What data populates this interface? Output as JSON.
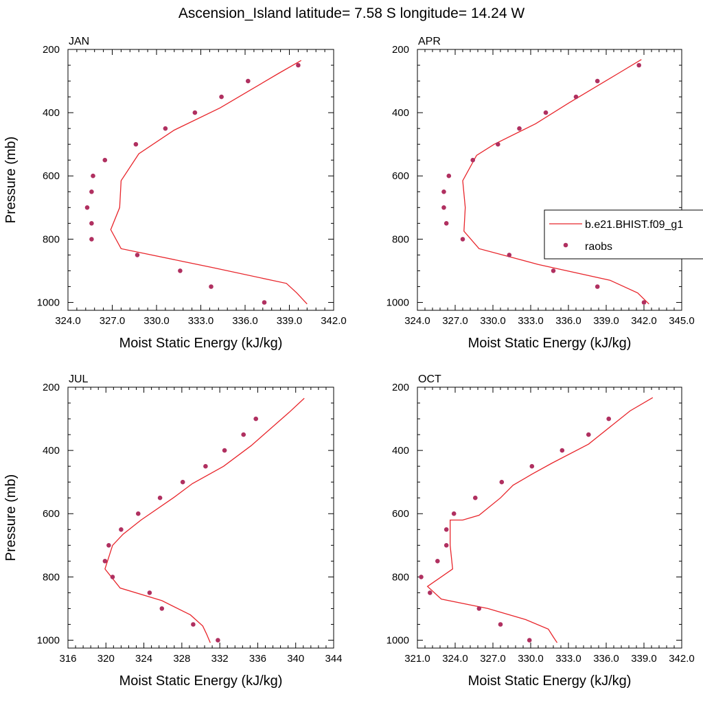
{
  "title": "Ascension_Island  latitude= 7.58 S longitude= 14.24 W",
  "colors": {
    "model": "#e8242a",
    "obs": "#b03060",
    "axis": "#000000"
  },
  "legend": {
    "model_label": "b.e21.BHIST.f09_g1",
    "obs_label": "raobs"
  },
  "chart_data": [
    {
      "type": "line",
      "panel": "JAN",
      "xlabel": "Moist Static Energy (kJ/kg)",
      "ylabel": "Pressure (mb)",
      "xlim": [
        324,
        342
      ],
      "ylim": [
        200,
        1025
      ],
      "y_reversed": true,
      "xticks": [
        "324.0",
        "327.0",
        "330.0",
        "333.0",
        "336.0",
        "339.0",
        "342.0"
      ],
      "yticks": [
        "200",
        "400",
        "600",
        "800",
        "1000"
      ],
      "series": [
        {
          "name": "b.e21.BHIST.f09_g1",
          "kind": "line",
          "x": [
            339.8,
            338.3,
            334.3,
            331.2,
            328.8,
            327.6,
            327.5,
            326.9,
            327.6,
            333.8,
            338.8,
            339.5,
            340.2
          ],
          "y": [
            235,
            275,
            385,
            455,
            530,
            615,
            700,
            770,
            830,
            890,
            940,
            970,
            1005
          ]
        },
        {
          "name": "raobs",
          "kind": "scatter",
          "x": [
            339.6,
            336.2,
            334.4,
            332.6,
            330.6,
            328.6,
            326.5,
            325.7,
            325.6,
            325.3,
            325.6,
            325.6,
            328.7,
            331.6,
            333.7,
            337.3
          ],
          "y": [
            250,
            300,
            350,
            400,
            450,
            500,
            550,
            600,
            650,
            700,
            750,
            800,
            850,
            900,
            950,
            1000
          ]
        }
      ]
    },
    {
      "type": "line",
      "panel": "APR",
      "xlabel": "Moist Static Energy (kJ/kg)",
      "ylabel": "",
      "xlim": [
        324,
        345
      ],
      "ylim": [
        200,
        1025
      ],
      "y_reversed": true,
      "xticks": [
        "324.0",
        "327.0",
        "330.0",
        "333.0",
        "336.0",
        "339.0",
        "342.0",
        "345.0"
      ],
      "yticks": [
        "200",
        "400",
        "600",
        "800",
        "1000"
      ],
      "series": [
        {
          "name": "b.e21.BHIST.f09_g1",
          "kind": "line",
          "x": [
            341.8,
            340.0,
            336.0,
            333.4,
            330.1,
            328.7,
            327.6,
            327.8,
            327.7,
            328.9,
            333.6,
            339.3,
            341.5,
            342.4
          ],
          "y": [
            232,
            275,
            370,
            435,
            500,
            535,
            615,
            700,
            775,
            830,
            880,
            930,
            970,
            1005
          ]
        },
        {
          "name": "raobs",
          "kind": "scatter",
          "x": [
            341.6,
            338.3,
            336.6,
            334.2,
            332.1,
            330.4,
            328.4,
            326.5,
            326.1,
            326.1,
            326.3,
            327.6,
            331.3,
            334.8,
            338.3,
            342.0
          ],
          "y": [
            250,
            300,
            350,
            400,
            450,
            500,
            550,
            600,
            650,
            700,
            750,
            800,
            850,
            900,
            950,
            1000
          ]
        }
      ]
    },
    {
      "type": "line",
      "panel": "JUL",
      "xlabel": "Moist Static Energy (kJ/kg)",
      "ylabel": "Pressure (mb)",
      "xlim": [
        316,
        344
      ],
      "ylim": [
        200,
        1025
      ],
      "y_reversed": true,
      "xticks": [
        "316",
        "320",
        "324",
        "328",
        "332",
        "336",
        "340",
        "344"
      ],
      "yticks": [
        "200",
        "400",
        "600",
        "800",
        "1000"
      ],
      "series": [
        {
          "name": "b.e21.BHIST.f09_g1",
          "kind": "line",
          "x": [
            340.9,
            339.3,
            335.3,
            332.4,
            329.1,
            327.1,
            323.7,
            321.8,
            320.7,
            319.9,
            321.5,
            325.9,
            328.9,
            330.2,
            330.6,
            331.0
          ],
          "y": [
            235,
            280,
            385,
            450,
            505,
            550,
            620,
            665,
            700,
            775,
            835,
            875,
            920,
            955,
            980,
            1008
          ]
        },
        {
          "name": "raobs",
          "kind": "scatter",
          "x": [
            335.8,
            334.5,
            332.5,
            330.5,
            328.1,
            325.7,
            323.4,
            321.6,
            320.3,
            319.9,
            320.7,
            324.6,
            325.9,
            329.2,
            331.8
          ],
          "y": [
            300,
            350,
            400,
            450,
            500,
            550,
            600,
            650,
            700,
            750,
            800,
            850,
            900,
            950,
            1000
          ]
        }
      ]
    },
    {
      "type": "line",
      "panel": "OCT",
      "xlabel": "Moist Static Energy (kJ/kg)",
      "ylabel": "",
      "xlim": [
        321,
        342
      ],
      "ylim": [
        200,
        1025
      ],
      "y_reversed": true,
      "xticks": [
        "321.0",
        "324.0",
        "327.0",
        "330.0",
        "333.0",
        "336.0",
        "339.0",
        "342.0"
      ],
      "yticks": [
        "200",
        "400",
        "600",
        "800",
        "1000"
      ],
      "series": [
        {
          "name": "b.e21.BHIST.f09_g1",
          "kind": "line",
          "x": [
            339.7,
            337.9,
            334.6,
            331.7,
            330.1,
            328.6,
            327.6,
            325.9,
            324.6,
            323.6,
            323.6,
            323.8,
            321.8,
            322.9,
            326.6,
            329.6,
            331.4,
            331.8,
            332.1
          ],
          "y": [
            233,
            275,
            380,
            440,
            475,
            510,
            550,
            605,
            620,
            620,
            700,
            775,
            830,
            870,
            900,
            935,
            965,
            990,
            1008
          ]
        },
        {
          "name": "raobs",
          "kind": "scatter",
          "x": [
            336.2,
            334.6,
            332.5,
            330.1,
            327.7,
            325.6,
            323.9,
            323.3,
            323.3,
            322.6,
            321.3,
            322.0,
            325.9,
            327.6,
            329.9
          ],
          "y": [
            300,
            350,
            400,
            450,
            500,
            550,
            600,
            650,
            700,
            750,
            800,
            850,
            900,
            950,
            1000
          ]
        }
      ]
    }
  ]
}
